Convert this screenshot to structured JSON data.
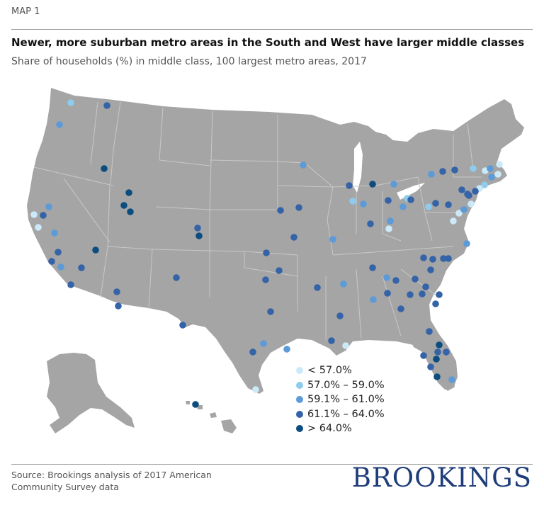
{
  "header": {
    "map_label": "MAP 1",
    "title": "Newer, more suburban metro areas in the South and West have larger middle classes",
    "subtitle": "Share of households (%) in middle class, 100 largest metro areas, 2017"
  },
  "legend": {
    "items": [
      {
        "label": "< 57.0%",
        "color": "#cce9f7"
      },
      {
        "label": "57.0% – 59.0%",
        "color": "#8ecbee"
      },
      {
        "label": "59.1% – 61.0%",
        "color": "#5c9ad8"
      },
      {
        "label": "61.1% – 64.0%",
        "color": "#3563a8"
      },
      {
        "label": "> 64.0%",
        "color": "#0c4d7f"
      }
    ]
  },
  "colors": {
    "land": "#a5a5a5",
    "border": "#c8c8c8"
  },
  "footer": {
    "source_line1": "Source: Brookings analysis of 2017 American",
    "source_line2": "Community Survey data",
    "logo": "BROOKINGS"
  }
}
